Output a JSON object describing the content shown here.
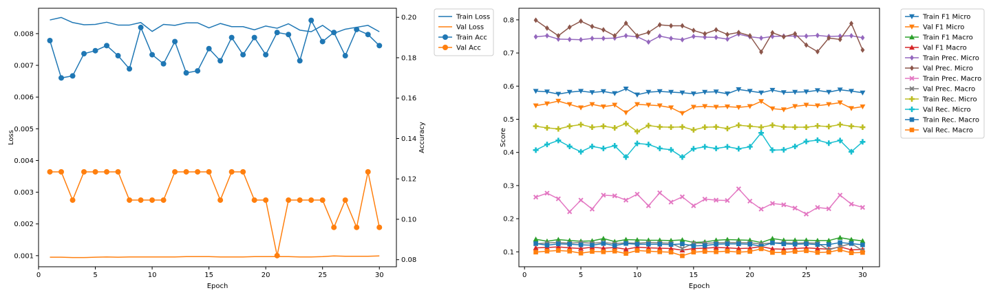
{
  "chart_data": [
    {
      "type": "line",
      "title": "",
      "xlabel": "Epoch",
      "ylabel": "Loss",
      "y2label": "Accuracy",
      "grid": false,
      "legend_placement": "outside-right",
      "x": [
        1,
        2,
        3,
        4,
        5,
        6,
        7,
        8,
        9,
        10,
        11,
        12,
        13,
        14,
        15,
        16,
        17,
        18,
        19,
        20,
        21,
        22,
        23,
        24,
        25,
        26,
        27,
        28,
        29,
        30
      ],
      "xlim": [
        0,
        31.5
      ],
      "xticks": [
        0,
        5,
        10,
        15,
        20,
        25,
        30
      ],
      "ylim": [
        0.00065,
        0.0088
      ],
      "yticks": [
        0.001,
        0.002,
        0.003,
        0.004,
        0.005,
        0.006,
        0.007,
        0.008
      ],
      "ytick_labels": [
        "0.001",
        "0.002",
        "0.003",
        "0.004",
        "0.005",
        "0.006",
        "0.007",
        "0.008"
      ],
      "y2lim": [
        0.0765,
        0.2045
      ],
      "y2ticks": [
        0.08,
        0.1,
        0.12,
        0.14,
        0.16,
        0.18,
        0.2
      ],
      "y2tick_labels": [
        "0.08",
        "0.10",
        "0.12",
        "0.14",
        "0.16",
        "0.18",
        "0.20"
      ],
      "series": [
        {
          "name": "Train Loss",
          "axis": "left",
          "color": "#1f77b4",
          "marker": "none",
          "values": [
            0.00843,
            0.00851,
            0.00835,
            0.00828,
            0.00829,
            0.00836,
            0.00827,
            0.00827,
            0.00835,
            0.00807,
            0.00829,
            0.00826,
            0.00834,
            0.00834,
            0.00818,
            0.00832,
            0.00822,
            0.00822,
            0.00812,
            0.00824,
            0.00817,
            0.00831,
            0.00811,
            0.00806,
            0.00826,
            0.00801,
            0.00814,
            0.0082,
            0.00826,
            0.00806
          ]
        },
        {
          "name": "Val Loss",
          "axis": "left",
          "color": "#ff7f0e",
          "marker": "none",
          "values": [
            0.00095,
            0.00095,
            0.00094,
            0.00094,
            0.00095,
            0.00096,
            0.00095,
            0.00096,
            0.00096,
            0.00096,
            0.00096,
            0.00096,
            0.00097,
            0.00097,
            0.00097,
            0.00096,
            0.00096,
            0.00096,
            0.00097,
            0.00097,
            0.00097,
            0.00097,
            0.00096,
            0.00096,
            0.00097,
            0.00099,
            0.00098,
            0.00098,
            0.00098,
            0.00099
          ]
        },
        {
          "name": "Train Acc",
          "axis": "right",
          "color": "#1f77b4",
          "marker": "circle",
          "values": [
            0.1885,
            0.17,
            0.171,
            0.182,
            0.1835,
            0.186,
            0.181,
            0.1745,
            0.195,
            0.1815,
            0.177,
            0.188,
            0.1725,
            0.1735,
            0.1845,
            0.1785,
            0.19,
            0.1815,
            0.19,
            0.1815,
            0.1925,
            0.1915,
            0.1785,
            0.1985,
            0.188,
            0.1925,
            0.181,
            0.194,
            0.1915,
            0.186
          ]
        },
        {
          "name": "Val Acc",
          "axis": "right",
          "color": "#ff7f0e",
          "marker": "circle",
          "values": [
            0.1235,
            0.1235,
            0.1095,
            0.1235,
            0.1235,
            0.1235,
            0.1235,
            0.1095,
            0.1095,
            0.1095,
            0.1095,
            0.1235,
            0.1235,
            0.1235,
            0.1235,
            0.1095,
            0.1235,
            0.1235,
            0.1095,
            0.1095,
            0.082,
            0.1095,
            0.1095,
            0.1095,
            0.1095,
            0.096,
            0.1095,
            0.096,
            0.1235,
            0.096
          ]
        }
      ]
    },
    {
      "type": "line",
      "title": "",
      "xlabel": "Epoch",
      "ylabel": "Score",
      "grid": false,
      "legend_placement": "outside-right",
      "x": [
        1,
        2,
        3,
        4,
        5,
        6,
        7,
        8,
        9,
        10,
        11,
        12,
        13,
        14,
        15,
        16,
        17,
        18,
        19,
        20,
        21,
        22,
        23,
        24,
        25,
        26,
        27,
        28,
        29,
        30
      ],
      "xlim": [
        -0.5,
        31.5
      ],
      "xticks": [
        0,
        5,
        10,
        15,
        20,
        25,
        30
      ],
      "ylim": [
        0.055,
        0.835
      ],
      "yticks": [
        0.1,
        0.2,
        0.3,
        0.4,
        0.5,
        0.6,
        0.7,
        0.8
      ],
      "ytick_labels": [
        "0.1",
        "0.2",
        "0.3",
        "0.4",
        "0.5",
        "0.6",
        "0.7",
        "0.8"
      ],
      "series": [
        {
          "name": "Train F1 Micro",
          "color": "#1f77b4",
          "marker": "tri-down",
          "values": [
            0.585,
            0.583,
            0.576,
            0.582,
            0.585,
            0.581,
            0.584,
            0.578,
            0.592,
            0.574,
            0.582,
            0.584,
            0.582,
            0.58,
            0.577,
            0.582,
            0.583,
            0.577,
            0.59,
            0.585,
            0.58,
            0.588,
            0.581,
            0.582,
            0.583,
            0.587,
            0.582,
            0.589,
            0.585,
            0.58
          ]
        },
        {
          "name": "Val F1 Micro",
          "color": "#ff7f0e",
          "marker": "tri-down",
          "values": [
            0.541,
            0.547,
            0.555,
            0.545,
            0.535,
            0.545,
            0.538,
            0.543,
            0.52,
            0.545,
            0.543,
            0.541,
            0.535,
            0.518,
            0.537,
            0.539,
            0.537,
            0.538,
            0.536,
            0.539,
            0.554,
            0.532,
            0.529,
            0.539,
            0.543,
            0.541,
            0.545,
            0.55,
            0.533,
            0.538
          ]
        },
        {
          "name": "Train F1 Macro",
          "color": "#2ca02c",
          "marker": "tri-up",
          "values": [
            0.138,
            0.132,
            0.137,
            0.134,
            0.132,
            0.133,
            0.14,
            0.131,
            0.137,
            0.136,
            0.135,
            0.135,
            0.134,
            0.136,
            0.128,
            0.13,
            0.135,
            0.137,
            0.136,
            0.135,
            0.128,
            0.14,
            0.135,
            0.135,
            0.135,
            0.134,
            0.134,
            0.143,
            0.137,
            0.133
          ]
        },
        {
          "name": "Val F1 Macro",
          "color": "#d62728",
          "marker": "tri-up",
          "values": [
            0.112,
            0.113,
            0.115,
            0.112,
            0.11,
            0.114,
            0.111,
            0.113,
            0.108,
            0.114,
            0.112,
            0.111,
            0.11,
            0.105,
            0.11,
            0.111,
            0.113,
            0.112,
            0.11,
            0.111,
            0.116,
            0.109,
            0.108,
            0.11,
            0.112,
            0.11,
            0.108,
            0.115,
            0.106,
            0.107
          ]
        },
        {
          "name": "Train Prec. Micro",
          "color": "#9467bd",
          "marker": "diamond",
          "values": [
            0.749,
            0.752,
            0.742,
            0.741,
            0.74,
            0.744,
            0.744,
            0.745,
            0.752,
            0.749,
            0.733,
            0.751,
            0.744,
            0.74,
            0.75,
            0.748,
            0.747,
            0.742,
            0.757,
            0.749,
            0.745,
            0.75,
            0.751,
            0.751,
            0.751,
            0.753,
            0.75,
            0.751,
            0.752,
            0.746
          ]
        },
        {
          "name": "Val Prec. Micro",
          "color": "#8c564b",
          "marker": "diamond",
          "values": [
            0.799,
            0.775,
            0.752,
            0.778,
            0.796,
            0.78,
            0.77,
            0.752,
            0.79,
            0.752,
            0.762,
            0.785,
            0.782,
            0.782,
            0.768,
            0.758,
            0.77,
            0.756,
            0.762,
            0.752,
            0.703,
            0.761,
            0.749,
            0.758,
            0.724,
            0.704,
            0.745,
            0.741,
            0.789,
            0.709
          ]
        },
        {
          "name": "Train Prec. Macro",
          "color": "#e377c2",
          "marker": "x",
          "values": [
            0.265,
            0.277,
            0.26,
            0.221,
            0.256,
            0.229,
            0.271,
            0.269,
            0.256,
            0.274,
            0.239,
            0.278,
            0.25,
            0.266,
            0.239,
            0.259,
            0.256,
            0.255,
            0.29,
            0.253,
            0.229,
            0.246,
            0.242,
            0.232,
            0.214,
            0.234,
            0.23,
            0.271,
            0.244,
            0.234
          ]
        },
        {
          "name": "Val Prec. Macro",
          "color": "#7f7f7f",
          "marker": "x",
          "values": [
            0.124,
            0.127,
            0.128,
            0.126,
            0.128,
            0.126,
            0.128,
            0.125,
            0.127,
            0.126,
            0.128,
            0.127,
            0.126,
            0.11,
            0.126,
            0.126,
            0.127,
            0.128,
            0.128,
            0.127,
            0.124,
            0.127,
            0.127,
            0.126,
            0.127,
            0.126,
            0.106,
            0.116,
            0.125,
            0.104
          ]
        },
        {
          "name": "Train Rec. Micro",
          "color": "#bcbd22",
          "marker": "plus",
          "values": [
            0.479,
            0.474,
            0.471,
            0.479,
            0.484,
            0.476,
            0.479,
            0.474,
            0.487,
            0.463,
            0.481,
            0.477,
            0.476,
            0.477,
            0.468,
            0.476,
            0.477,
            0.472,
            0.482,
            0.479,
            0.476,
            0.482,
            0.477,
            0.476,
            0.476,
            0.48,
            0.478,
            0.484,
            0.479,
            0.476
          ]
        },
        {
          "name": "Val Rec. Micro",
          "color": "#17becf",
          "marker": "plus",
          "values": [
            0.407,
            0.424,
            0.436,
            0.418,
            0.402,
            0.418,
            0.412,
            0.42,
            0.386,
            0.427,
            0.424,
            0.412,
            0.408,
            0.386,
            0.411,
            0.417,
            0.412,
            0.417,
            0.411,
            0.417,
            0.459,
            0.407,
            0.408,
            0.418,
            0.433,
            0.437,
            0.428,
            0.436,
            0.402,
            0.432
          ]
        },
        {
          "name": "Train Rec. Macro",
          "color": "#1f77b4",
          "marker": "square",
          "values": [
            0.125,
            0.12,
            0.124,
            0.123,
            0.121,
            0.12,
            0.125,
            0.119,
            0.125,
            0.123,
            0.123,
            0.123,
            0.122,
            0.124,
            0.118,
            0.119,
            0.123,
            0.124,
            0.124,
            0.123,
            0.117,
            0.127,
            0.124,
            0.123,
            0.124,
            0.122,
            0.122,
            0.128,
            0.125,
            0.121
          ]
        },
        {
          "name": "Val Rec. Macro",
          "color": "#ff7f0e",
          "marker": "square",
          "values": [
            0.099,
            0.102,
            0.104,
            0.102,
            0.096,
            0.101,
            0.1,
            0.102,
            0.095,
            0.104,
            0.102,
            0.1,
            0.099,
            0.088,
            0.099,
            0.101,
            0.1,
            0.102,
            0.099,
            0.101,
            0.109,
            0.098,
            0.098,
            0.101,
            0.103,
            0.098,
            0.099,
            0.106,
            0.097,
            0.098
          ]
        }
      ]
    }
  ]
}
